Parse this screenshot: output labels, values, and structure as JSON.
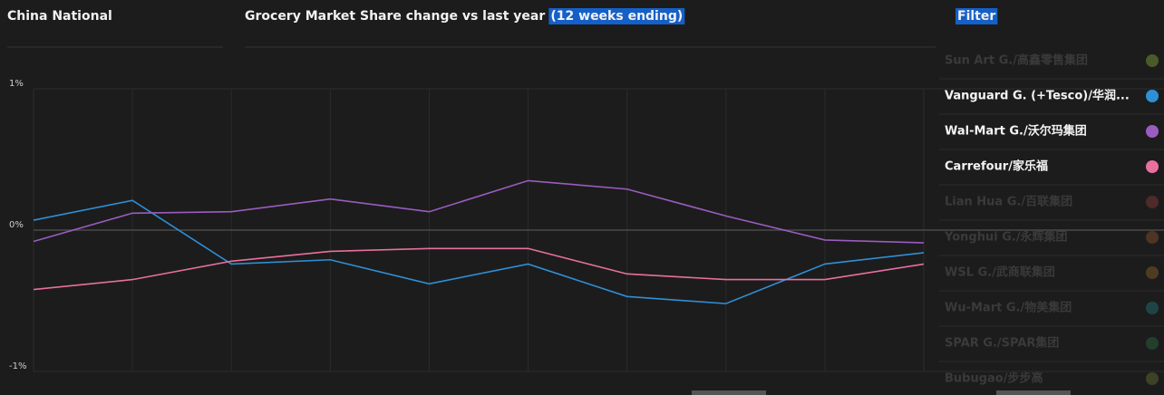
{
  "header": {
    "region": "China National",
    "filter_title": "Filter"
  },
  "chart_data": {
    "type": "line",
    "title": "Grocery Market Share change vs last year",
    "title_highlight": "(12 weeks ending)",
    "categories": [
      null,
      null,
      null,
      null,
      null,
      null,
      null,
      null,
      null,
      null
    ],
    "ylim": [
      -1,
      1
    ],
    "yticks": [
      {
        "value": 1,
        "label": "1%"
      },
      {
        "value": 0,
        "label": "0%"
      },
      {
        "value": -1,
        "label": "-1%"
      }
    ],
    "grid": true,
    "series": [
      {
        "name": "Sun Art G./高鑫零售集团",
        "color": "#4b5a2a",
        "visible": false
      },
      {
        "name": "Vanguard G. (+Tesco)/华润...",
        "color": "#2e8fd6",
        "visible": true,
        "values": [
          0.07,
          0.21,
          -0.24,
          -0.21,
          -0.38,
          -0.24,
          -0.47,
          -0.52,
          -0.24,
          -0.16
        ]
      },
      {
        "name": "Wal-Mart G./沃尔玛集团",
        "color": "#9b5cbf",
        "visible": true,
        "values": [
          -0.08,
          0.12,
          0.13,
          0.22,
          0.13,
          0.35,
          0.29,
          0.1,
          -0.07,
          -0.09
        ]
      },
      {
        "name": "Carrefour/家乐福",
        "color": "#e8709f",
        "visible": true,
        "values": [
          -0.42,
          -0.35,
          -0.22,
          -0.15,
          -0.13,
          -0.13,
          -0.31,
          -0.35,
          -0.35,
          -0.24
        ]
      },
      {
        "name": "Lian Hua G./百联集团",
        "color": "#4e2a2a",
        "visible": false
      },
      {
        "name": "Yonghui G./永辉集团",
        "color": "#4e3424",
        "visible": false
      },
      {
        "name": "WSL G./武商联集团",
        "color": "#4e3c22",
        "visible": false
      },
      {
        "name": "Wu-Mart G./物美集团",
        "color": "#1f4448",
        "visible": false
      },
      {
        "name": "SPAR G./SPAR集团",
        "color": "#233f2c",
        "visible": false
      },
      {
        "name": "Bubugao/步步高",
        "color": "#3c4226",
        "visible": false
      }
    ]
  }
}
